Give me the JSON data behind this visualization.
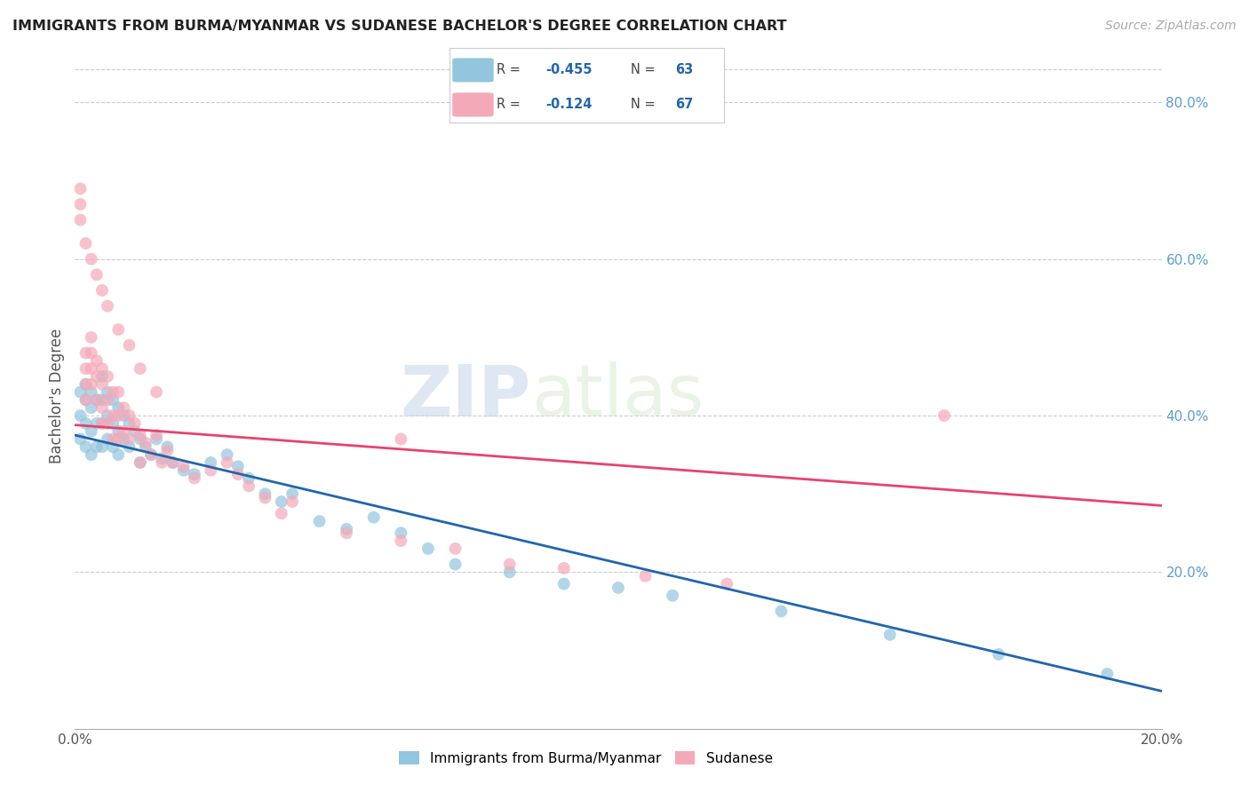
{
  "title": "IMMIGRANTS FROM BURMA/MYANMAR VS SUDANESE BACHELOR'S DEGREE CORRELATION CHART",
  "source": "Source: ZipAtlas.com",
  "ylabel": "Bachelor's Degree",
  "x_min": 0.0,
  "x_max": 0.2,
  "y_min": 0.0,
  "y_max": 0.85,
  "y_ticks_right": [
    0.2,
    0.4,
    0.6,
    0.8
  ],
  "y_tick_labels_right": [
    "20.0%",
    "40.0%",
    "60.0%",
    "80.0%"
  ],
  "color_blue": "#92c5de",
  "color_blue_line": "#2166ac",
  "color_pink": "#f4a9b8",
  "color_pink_line": "#e8436e",
  "watermark_zip": "ZIP",
  "watermark_atlas": "atlas",
  "blue_points_x": [
    0.001,
    0.001,
    0.001,
    0.002,
    0.002,
    0.002,
    0.002,
    0.003,
    0.003,
    0.003,
    0.003,
    0.004,
    0.004,
    0.004,
    0.005,
    0.005,
    0.005,
    0.005,
    0.006,
    0.006,
    0.006,
    0.007,
    0.007,
    0.007,
    0.008,
    0.008,
    0.008,
    0.009,
    0.009,
    0.01,
    0.01,
    0.011,
    0.012,
    0.012,
    0.013,
    0.014,
    0.015,
    0.016,
    0.017,
    0.018,
    0.02,
    0.022,
    0.025,
    0.028,
    0.03,
    0.032,
    0.035,
    0.038,
    0.04,
    0.045,
    0.05,
    0.055,
    0.06,
    0.065,
    0.07,
    0.08,
    0.09,
    0.1,
    0.11,
    0.13,
    0.15,
    0.17,
    0.19
  ],
  "blue_points_y": [
    0.43,
    0.4,
    0.37,
    0.44,
    0.42,
    0.39,
    0.36,
    0.43,
    0.41,
    0.38,
    0.35,
    0.42,
    0.39,
    0.36,
    0.45,
    0.42,
    0.39,
    0.36,
    0.43,
    0.4,
    0.37,
    0.42,
    0.39,
    0.36,
    0.41,
    0.38,
    0.35,
    0.4,
    0.37,
    0.39,
    0.36,
    0.38,
    0.37,
    0.34,
    0.36,
    0.35,
    0.37,
    0.345,
    0.36,
    0.34,
    0.33,
    0.325,
    0.34,
    0.35,
    0.335,
    0.32,
    0.3,
    0.29,
    0.3,
    0.265,
    0.255,
    0.27,
    0.25,
    0.23,
    0.21,
    0.2,
    0.185,
    0.18,
    0.17,
    0.15,
    0.12,
    0.095,
    0.07
  ],
  "pink_points_x": [
    0.001,
    0.001,
    0.001,
    0.002,
    0.002,
    0.002,
    0.002,
    0.003,
    0.003,
    0.003,
    0.003,
    0.004,
    0.004,
    0.004,
    0.005,
    0.005,
    0.005,
    0.005,
    0.006,
    0.006,
    0.006,
    0.007,
    0.007,
    0.007,
    0.008,
    0.008,
    0.008,
    0.009,
    0.009,
    0.01,
    0.01,
    0.011,
    0.012,
    0.012,
    0.013,
    0.014,
    0.015,
    0.016,
    0.017,
    0.018,
    0.02,
    0.022,
    0.025,
    0.028,
    0.03,
    0.032,
    0.035,
    0.038,
    0.04,
    0.05,
    0.06,
    0.07,
    0.08,
    0.09,
    0.105,
    0.12,
    0.002,
    0.003,
    0.004,
    0.005,
    0.006,
    0.008,
    0.01,
    0.012,
    0.015,
    0.16,
    0.06
  ],
  "pink_points_y": [
    0.69,
    0.67,
    0.65,
    0.48,
    0.46,
    0.44,
    0.42,
    0.5,
    0.48,
    0.46,
    0.44,
    0.47,
    0.45,
    0.42,
    0.46,
    0.44,
    0.41,
    0.39,
    0.45,
    0.42,
    0.39,
    0.43,
    0.4,
    0.37,
    0.43,
    0.4,
    0.37,
    0.41,
    0.38,
    0.4,
    0.37,
    0.39,
    0.375,
    0.34,
    0.365,
    0.35,
    0.375,
    0.34,
    0.355,
    0.34,
    0.335,
    0.32,
    0.33,
    0.34,
    0.325,
    0.31,
    0.295,
    0.275,
    0.29,
    0.25,
    0.24,
    0.23,
    0.21,
    0.205,
    0.195,
    0.185,
    0.62,
    0.6,
    0.58,
    0.56,
    0.54,
    0.51,
    0.49,
    0.46,
    0.43,
    0.4,
    0.37
  ]
}
